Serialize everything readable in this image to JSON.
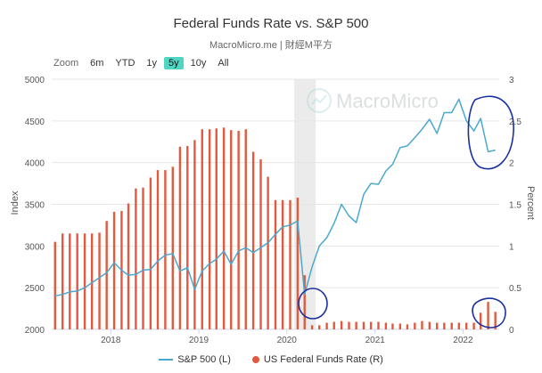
{
  "chart_data": {
    "type": "bar+line",
    "title": "Federal Funds Rate vs. S&P 500",
    "subtitle": "MacroMicro.me | 財經M平方",
    "watermark": "MacroMicro",
    "y_left": {
      "label": "Index",
      "range": [
        2000,
        5000
      ],
      "ticks": [
        "2000",
        "2500",
        "3000",
        "3500",
        "4000",
        "4500",
        "5000"
      ]
    },
    "y_right": {
      "label": "Percent",
      "range": [
        0,
        3
      ],
      "ticks": [
        "0",
        "0.5",
        "1",
        "1.5",
        "2",
        "2.5",
        "3"
      ]
    },
    "x_ticks": [
      "2018",
      "2019",
      "2020",
      "2021",
      "2022"
    ],
    "x_range": [
      "2017-05-01",
      "2022-05-31"
    ],
    "highlight_band": [
      "2020-02-01",
      "2020-04-30"
    ],
    "legend_position": "bottom",
    "grid": "horizontal",
    "series": [
      {
        "name": "S&P 500 (L)",
        "type": "line",
        "axis": "left",
        "color": "#4aa8d0",
        "x": [
          "2017-05",
          "2017-06",
          "2017-07",
          "2017-08",
          "2017-09",
          "2017-10",
          "2017-11",
          "2017-12",
          "2018-01",
          "2018-02",
          "2018-03",
          "2018-04",
          "2018-05",
          "2018-06",
          "2018-07",
          "2018-08",
          "2018-09",
          "2018-10",
          "2018-11",
          "2018-12",
          "2019-01",
          "2019-02",
          "2019-03",
          "2019-04",
          "2019-05",
          "2019-06",
          "2019-07",
          "2019-08",
          "2019-09",
          "2019-10",
          "2019-11",
          "2019-12",
          "2020-01",
          "2020-02",
          "2020-03",
          "2020-04",
          "2020-05",
          "2020-06",
          "2020-07",
          "2020-08",
          "2020-09",
          "2020-10",
          "2020-11",
          "2020-12",
          "2021-01",
          "2021-02",
          "2021-03",
          "2021-04",
          "2021-05",
          "2021-06",
          "2021-07",
          "2021-08",
          "2021-09",
          "2021-10",
          "2021-11",
          "2021-12",
          "2022-01",
          "2022-02",
          "2022-03",
          "2022-04",
          "2022-05"
        ],
        "values": [
          2400,
          2420,
          2450,
          2460,
          2500,
          2560,
          2620,
          2680,
          2800,
          2710,
          2650,
          2660,
          2710,
          2720,
          2820,
          2890,
          2910,
          2700,
          2740,
          2480,
          2700,
          2790,
          2840,
          2940,
          2780,
          2940,
          2980,
          2920,
          2980,
          3040,
          3140,
          3230,
          3250,
          3300,
          2420,
          2750,
          3000,
          3100,
          3270,
          3500,
          3360,
          3280,
          3620,
          3750,
          3740,
          3900,
          3980,
          4180,
          4200,
          4300,
          4400,
          4520,
          4350,
          4600,
          4600,
          4760,
          4500,
          4380,
          4530,
          4130,
          4150
        ]
      },
      {
        "name": "US Federal Funds Rate (R)",
        "type": "bar",
        "axis": "right",
        "color": "#e25a3e",
        "x": [
          "2017-05",
          "2017-06",
          "2017-07",
          "2017-08",
          "2017-09",
          "2017-10",
          "2017-11",
          "2017-12",
          "2018-01",
          "2018-02",
          "2018-03",
          "2018-04",
          "2018-05",
          "2018-06",
          "2018-07",
          "2018-08",
          "2018-09",
          "2018-10",
          "2018-11",
          "2018-12",
          "2019-01",
          "2019-02",
          "2019-03",
          "2019-04",
          "2019-05",
          "2019-06",
          "2019-07",
          "2019-08",
          "2019-09",
          "2019-10",
          "2019-11",
          "2019-12",
          "2020-01",
          "2020-02",
          "2020-03",
          "2020-04",
          "2020-05",
          "2020-06",
          "2020-07",
          "2020-08",
          "2020-09",
          "2020-10",
          "2020-11",
          "2020-12",
          "2021-01",
          "2021-02",
          "2021-03",
          "2021-04",
          "2021-05",
          "2021-06",
          "2021-07",
          "2021-08",
          "2021-09",
          "2021-10",
          "2021-11",
          "2021-12",
          "2022-01",
          "2022-02",
          "2022-03",
          "2022-04",
          "2022-05"
        ],
        "values": [
          1.05,
          1.15,
          1.15,
          1.15,
          1.15,
          1.15,
          1.16,
          1.3,
          1.41,
          1.42,
          1.51,
          1.69,
          1.7,
          1.82,
          1.91,
          1.91,
          1.95,
          2.19,
          2.2,
          2.27,
          2.4,
          2.4,
          2.41,
          2.42,
          2.39,
          2.38,
          2.4,
          2.13,
          2.04,
          1.83,
          1.55,
          1.55,
          1.55,
          1.58,
          0.65,
          0.05,
          0.05,
          0.08,
          0.09,
          0.1,
          0.09,
          0.09,
          0.09,
          0.09,
          0.09,
          0.08,
          0.07,
          0.07,
          0.06,
          0.08,
          0.1,
          0.09,
          0.08,
          0.08,
          0.08,
          0.08,
          0.08,
          0.08,
          0.2,
          0.33,
          0.21
        ]
      }
    ]
  },
  "zoom": {
    "label": "Zoom",
    "buttons": [
      "6m",
      "YTD",
      "1y",
      "5y",
      "10y",
      "All"
    ],
    "active": "5y"
  }
}
